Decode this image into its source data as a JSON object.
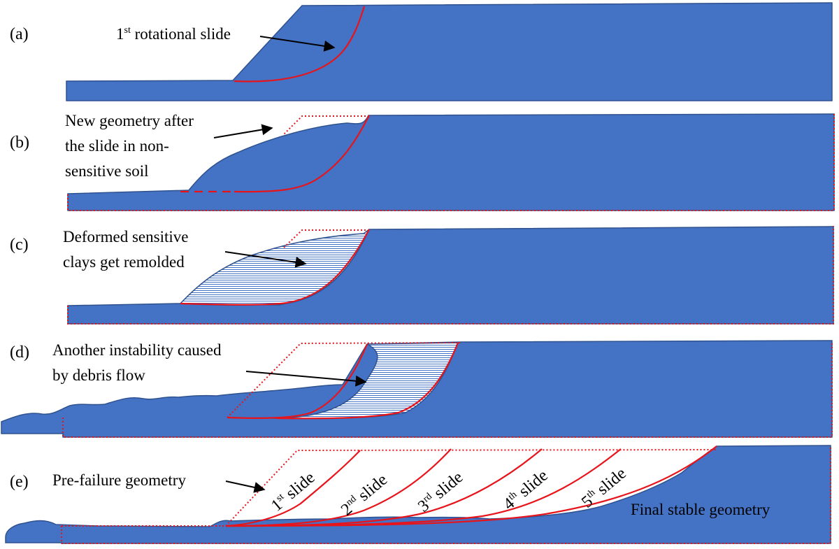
{
  "panels": {
    "a": {
      "letter": "(a)",
      "label_main": "1",
      "label_sup": "st",
      "label_rest": " rotational slide"
    },
    "b": {
      "letter": "(b)",
      "lines": [
        "New geometry after",
        "the slide in non-",
        "sensitive soil"
      ]
    },
    "c": {
      "letter": "(c)",
      "lines": [
        "Deformed sensitive",
        "clays get remolded"
      ]
    },
    "d": {
      "letter": "(d)",
      "lines": [
        "Another instability caused",
        "by debris flow"
      ]
    },
    "e": {
      "letter": "(e)",
      "pre_failure": "Pre-failure geometry",
      "final": "Final stable geometry",
      "slides": [
        {
          "num": "1",
          "sup": "st",
          "word": "slide"
        },
        {
          "num": "2",
          "sup": "nd",
          "word": "slide"
        },
        {
          "num": "3",
          "sup": "rd",
          "word": "slide"
        },
        {
          "num": "4",
          "sup": "th",
          "word": "slide"
        },
        {
          "num": "5",
          "sup": "th",
          "word": "slide"
        }
      ]
    }
  },
  "colors": {
    "soil": "#4472C4",
    "slip_surface": "#E8141B",
    "outline": "#2F528F"
  }
}
